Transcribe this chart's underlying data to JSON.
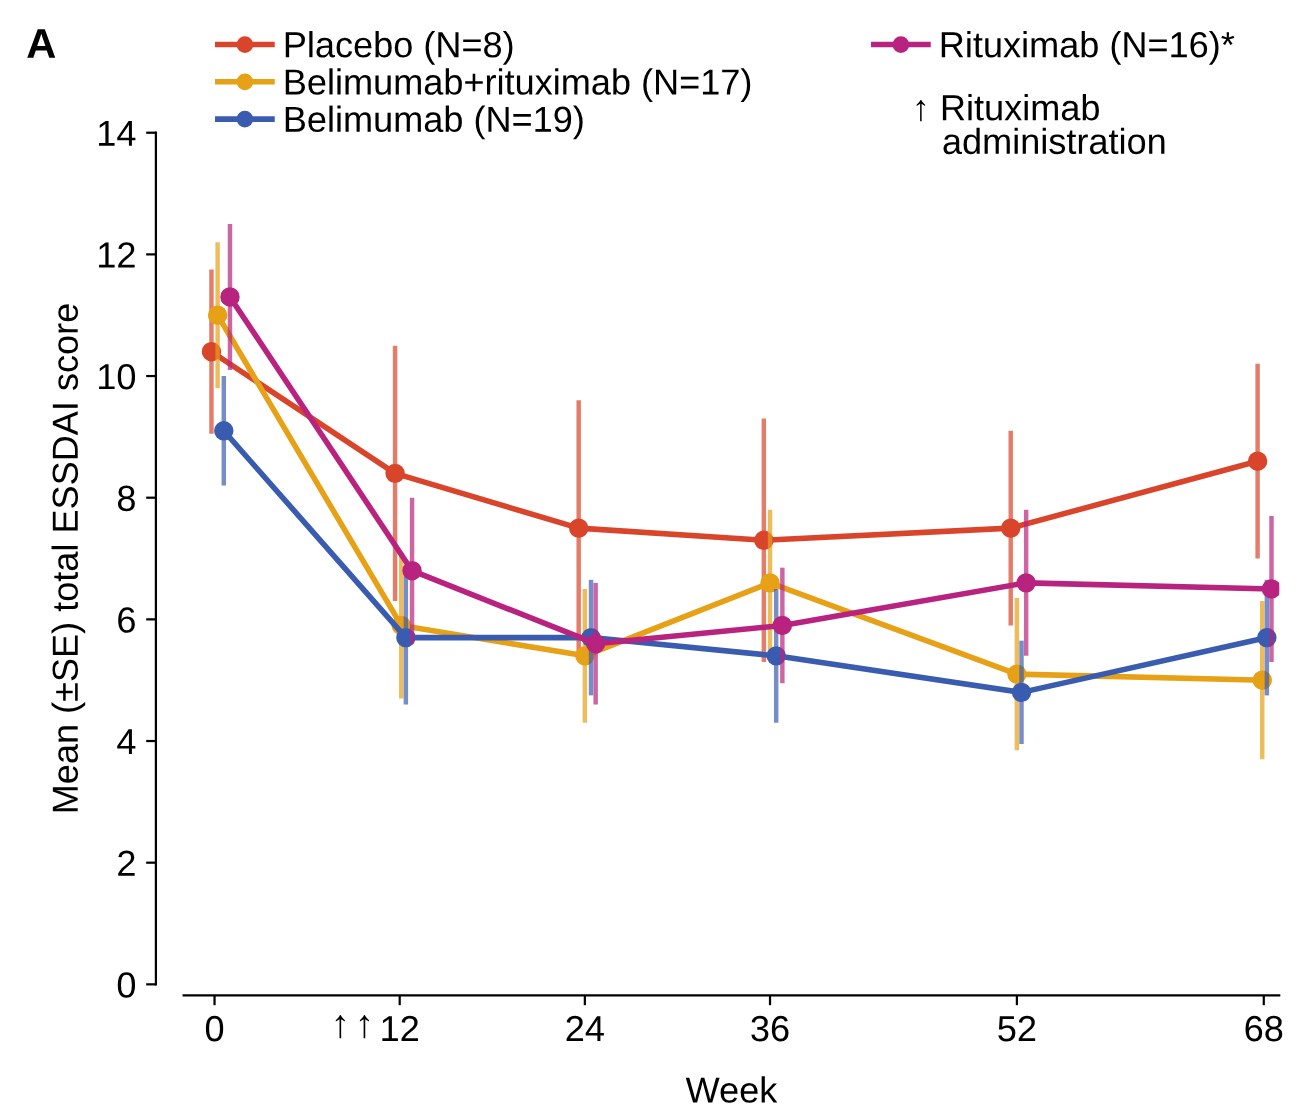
{
  "chart_data": {
    "type": "line",
    "xlabel": "Week",
    "ylabel": "Mean (±SE) total ESSDAI score",
    "xlim": [
      -2,
      69
    ],
    "xticks": [
      0,
      12,
      24,
      36,
      52,
      68
    ],
    "ylim": [
      0,
      14
    ],
    "yticks": [
      0,
      2,
      4,
      6,
      8,
      10,
      12,
      14
    ],
    "marker": "circle",
    "line_style": "solid",
    "grid": false,
    "legend": "top",
    "series": [
      {
        "name": "Placebo (N=8)",
        "color": "#d9452b",
        "x": [
          -0.2,
          11.7,
          23.6,
          35.6,
          51.6,
          67.6
        ],
        "values": [
          10.4,
          8.4,
          7.5,
          7.3,
          7.5,
          8.6
        ],
        "errors": [
          1.35,
          2.1,
          2.1,
          2.0,
          1.6,
          1.6
        ]
      },
      {
        "name": "Belimumab+rituximab (N=17)",
        "color": "#e6a117",
        "x": [
          0.2,
          12.1,
          24.0,
          36.0,
          52.0,
          67.9
        ],
        "values": [
          11.0,
          5.9,
          5.4,
          6.6,
          5.1,
          5.0
        ],
        "errors": [
          1.2,
          1.2,
          1.1,
          1.2,
          1.25,
          1.3
        ]
      },
      {
        "name": "Belimumab (N=19)",
        "color": "#3a5cb0",
        "x": [
          0.6,
          12.4,
          24.4,
          36.4,
          52.3,
          68.2
        ],
        "values": [
          9.1,
          5.7,
          5.7,
          5.4,
          4.8,
          5.7
        ],
        "errors": [
          0.9,
          1.1,
          0.95,
          1.1,
          0.85,
          0.95
        ]
      },
      {
        "name": "Rituximab (N=16)*",
        "color": "#b8237f",
        "x": [
          1.0,
          12.8,
          24.7,
          36.8,
          52.6,
          68.5
        ],
        "values": [
          11.3,
          6.8,
          5.6,
          5.9,
          6.6,
          6.5
        ],
        "errors": [
          1.2,
          1.2,
          1.0,
          0.95,
          1.2,
          1.2
        ]
      }
    ],
    "annotations": [
      "A",
      "↑ Rituximab\n   administration",
      "↑",
      "↑"
    ]
  }
}
